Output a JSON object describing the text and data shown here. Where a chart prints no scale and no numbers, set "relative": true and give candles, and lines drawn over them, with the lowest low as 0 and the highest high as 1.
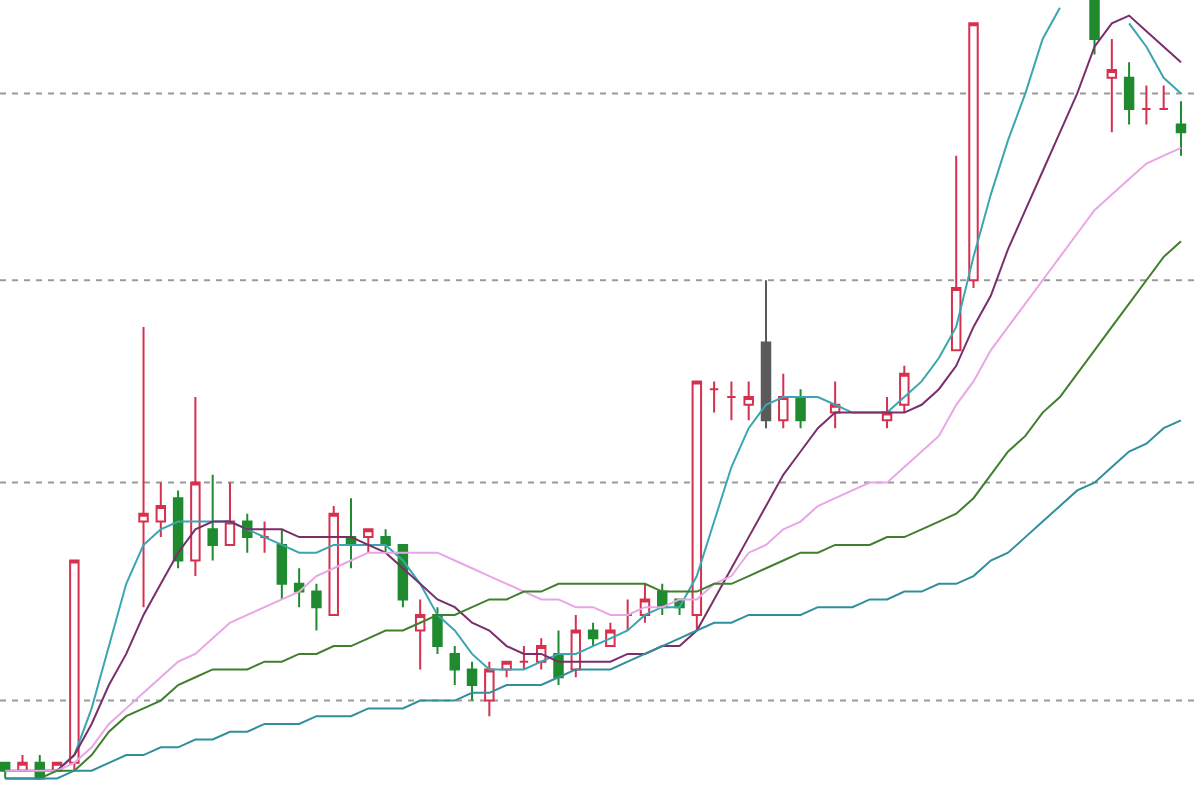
{
  "chart_data": {
    "type": "candlestick",
    "relative": true,
    "categories": [
      null,
      null,
      null,
      null,
      null,
      null,
      null,
      null,
      null,
      null,
      null,
      null,
      null,
      null,
      null,
      null,
      null,
      null,
      null,
      null,
      null,
      null,
      null,
      null,
      null,
      null,
      null,
      null,
      null,
      null,
      null,
      null,
      null,
      null,
      null,
      null,
      null,
      null,
      null,
      null,
      null,
      null,
      null,
      null,
      null,
      null,
      null,
      null,
      null,
      null,
      null,
      null,
      null,
      null,
      null,
      null,
      null,
      null,
      null,
      null,
      null,
      null,
      null,
      null,
      null,
      null,
      null,
      null,
      null
    ],
    "ohlc": [
      [
        0.02,
        0.02,
        0,
        0.01
      ],
      [
        0.01,
        0.03,
        0.01,
        0.02
      ],
      [
        0.02,
        0.03,
        0,
        0
      ],
      [
        0.01,
        0.02,
        0.01,
        0.02
      ],
      [
        0.02,
        0.28,
        0.01,
        0.28
      ],
      null,
      null,
      null,
      [
        0.33,
        0.58,
        0.22,
        0.34
      ],
      [
        0.33,
        0.38,
        0.31,
        0.35
      ],
      [
        0.36,
        0.37,
        0.27,
        0.28
      ],
      [
        0.28,
        0.49,
        0.26,
        0.38
      ],
      [
        0.32,
        0.39,
        0.28,
        0.3
      ],
      [
        0.3,
        0.38,
        0.3,
        0.33
      ],
      [
        0.33,
        0.34,
        0.29,
        0.31
      ],
      [
        0.31,
        0.33,
        0.29,
        0.31
      ],
      [
        0.3,
        0.32,
        0.23,
        0.25
      ],
      [
        0.25,
        0.27,
        0.22,
        0.24
      ],
      [
        0.24,
        0.25,
        0.19,
        0.22
      ],
      [
        0.21,
        0.35,
        0.21,
        0.34
      ],
      [
        0.31,
        0.36,
        0.27,
        0.3
      ],
      [
        0.31,
        0.32,
        0.29,
        0.32
      ],
      [
        0.31,
        0.32,
        0.29,
        0.3
      ],
      [
        0.3,
        0.3,
        0.22,
        0.23
      ],
      [
        0.19,
        0.23,
        0.14,
        0.21
      ],
      [
        0.21,
        0.22,
        0.16,
        0.17
      ],
      [
        0.16,
        0.17,
        0.12,
        0.14
      ],
      [
        0.14,
        0.15,
        0.1,
        0.12
      ],
      [
        0.1,
        0.15,
        0.08,
        0.14
      ],
      [
        0.14,
        0.15,
        0.13,
        0.15
      ],
      [
        0.15,
        0.17,
        0.14,
        0.15
      ],
      [
        0.15,
        0.18,
        0.14,
        0.17
      ],
      [
        0.16,
        0.19,
        0.12,
        0.13
      ],
      [
        0.14,
        0.21,
        0.13,
        0.19
      ],
      [
        0.19,
        0.2,
        0.17,
        0.18
      ],
      [
        0.17,
        0.2,
        0.17,
        0.19
      ],
      [
        0.21,
        0.23,
        0.19,
        0.21
      ],
      [
        0.21,
        0.25,
        0.2,
        0.23
      ],
      [
        0.24,
        0.25,
        0.21,
        0.22
      ],
      [
        0.23,
        0.23,
        0.21,
        0.22
      ],
      [
        0.21,
        0.51,
        0.19,
        0.51
      ],
      [
        0.5,
        0.51,
        0.47,
        0.5
      ],
      [
        0.49,
        0.51,
        0.46,
        0.49
      ],
      [
        0.48,
        0.51,
        0.46,
        0.49
      ],
      [
        0.56,
        0.64,
        0.45,
        0.46
      ],
      [
        0.46,
        0.52,
        0.45,
        0.49
      ],
      [
        0.49,
        0.5,
        0.45,
        0.46
      ],
      null,
      [
        0.47,
        0.51,
        0.45,
        0.48
      ],
      null,
      null,
      [
        0.46,
        0.49,
        0.45,
        0.47
      ],
      [
        0.48,
        0.53,
        0.47,
        0.52
      ],
      null,
      null,
      [
        0.55,
        0.8,
        0.55,
        0.63
      ],
      [
        0.64,
        0.97,
        0.63,
        0.97
      ],
      null,
      null,
      null,
      null,
      null,
      null,
      [
        1.0,
        1.0,
        0.93,
        0.95
      ],
      [
        0.9,
        0.95,
        0.83,
        0.91
      ],
      [
        0.9,
        0.92,
        0.84,
        0.86
      ],
      [
        0.86,
        0.89,
        0.84,
        0.86
      ],
      [
        0.86,
        0.89,
        0.86,
        0.86
      ],
      [
        0.84,
        0.87,
        0.8,
        0.83
      ]
    ],
    "colors": [
      "#1f8a2e",
      "#d6304e",
      "#1f8a2e",
      "#d6304e",
      "#d6304e",
      null,
      null,
      null,
      "#d6304e",
      "#d6304e",
      "#1f8a2e",
      "#d6304e",
      "#1f8a2e",
      "#d6304e",
      "#1f8a2e",
      "#d6304e",
      "#1f8a2e",
      "#1f8a2e",
      "#1f8a2e",
      "#d6304e",
      "#1f8a2e",
      "#d6304e",
      "#1f8a2e",
      "#1f8a2e",
      "#d6304e",
      "#1f8a2e",
      "#1f8a2e",
      "#1f8a2e",
      "#d6304e",
      "#d6304e",
      "#d6304e",
      "#d6304e",
      "#1f8a2e",
      "#d6304e",
      "#1f8a2e",
      "#d6304e",
      "#d6304e",
      "#d6304e",
      "#1f8a2e",
      "#1f8a2e",
      "#d6304e",
      "#d6304e",
      "#d6304e",
      "#d6304e",
      "#5a5a5a",
      "#d6304e",
      "#1f8a2e",
      null,
      "#d6304e",
      null,
      null,
      "#d6304e",
      "#d6304e",
      null,
      null,
      "#d6304e",
      "#d6304e",
      null,
      null,
      null,
      null,
      null,
      null,
      "#1f8a2e",
      "#d6304e",
      "#1f8a2e",
      "#d6304e",
      "#d6304e",
      "#1f8a2e"
    ],
    "series": [
      {
        "type": "line",
        "color": "#3aa6b0",
        "values": [
          null,
          null,
          0.01,
          0.01,
          0.03,
          0.09,
          0.17,
          0.25,
          0.3,
          0.32,
          0.33,
          0.33,
          0.33,
          0.33,
          0.32,
          0.31,
          0.3,
          0.29,
          0.29,
          0.3,
          0.3,
          0.3,
          0.3,
          0.28,
          0.25,
          0.21,
          0.19,
          0.16,
          0.14,
          0.14,
          0.14,
          0.15,
          0.16,
          0.16,
          0.17,
          0.18,
          0.19,
          0.21,
          0.22,
          0.22,
          0.26,
          0.33,
          0.4,
          0.45,
          0.48,
          0.49,
          0.49,
          0.49,
          0.48,
          0.47,
          0.47,
          0.47,
          0.49,
          0.51,
          0.54,
          0.58,
          0.67,
          0.75,
          0.82,
          0.88,
          0.95,
          0.99,
          null,
          null,
          null,
          0.97,
          0.94,
          0.9,
          0.88
        ]
      },
      {
        "type": "line",
        "color": "#7a2e6a",
        "values": [
          0.01,
          0.01,
          0.01,
          0.01,
          0.03,
          0.07,
          0.12,
          0.16,
          0.21,
          0.25,
          0.29,
          0.32,
          0.33,
          0.33,
          0.32,
          0.32,
          0.32,
          0.31,
          0.31,
          0.31,
          0.31,
          0.3,
          0.29,
          0.27,
          0.25,
          0.23,
          0.22,
          0.2,
          0.19,
          0.17,
          0.16,
          0.16,
          0.15,
          0.15,
          0.15,
          0.15,
          0.16,
          0.16,
          0.17,
          0.17,
          0.19,
          0.23,
          0.27,
          0.31,
          0.35,
          0.39,
          0.42,
          0.45,
          0.47,
          0.47,
          0.47,
          0.47,
          0.47,
          0.48,
          0.5,
          0.53,
          0.58,
          0.62,
          0.68,
          0.73,
          0.78,
          0.83,
          0.88,
          0.94,
          0.97,
          0.98,
          0.96,
          0.94,
          0.92
        ]
      },
      {
        "type": "line",
        "color": "#e9a6e6",
        "values": [
          0.01,
          0.01,
          0.01,
          0.01,
          0.02,
          0.04,
          0.07,
          0.09,
          0.11,
          0.13,
          0.15,
          0.16,
          0.18,
          0.2,
          0.21,
          0.22,
          0.23,
          0.24,
          0.26,
          0.27,
          0.28,
          0.29,
          0.29,
          0.29,
          0.29,
          0.29,
          0.28,
          0.27,
          0.26,
          0.25,
          0.24,
          0.23,
          0.23,
          0.22,
          0.22,
          0.21,
          0.21,
          0.22,
          0.22,
          0.23,
          0.23,
          0.25,
          0.26,
          0.29,
          0.3,
          0.32,
          0.33,
          0.35,
          0.36,
          0.37,
          0.38,
          0.38,
          0.4,
          0.42,
          0.44,
          0.48,
          0.51,
          0.55,
          0.58,
          0.61,
          0.64,
          0.67,
          0.7,
          0.73,
          0.75,
          0.77,
          0.79,
          0.8,
          0.81
        ]
      },
      {
        "type": "line",
        "color": "#3f7f2e",
        "values": [
          0,
          0,
          0,
          0.01,
          0.01,
          0.03,
          0.06,
          0.08,
          0.09,
          0.1,
          0.12,
          0.13,
          0.14,
          0.14,
          0.14,
          0.15,
          0.15,
          0.16,
          0.16,
          0.17,
          0.17,
          0.18,
          0.19,
          0.19,
          0.2,
          0.21,
          0.21,
          0.22,
          0.23,
          0.23,
          0.24,
          0.24,
          0.25,
          0.25,
          0.25,
          0.25,
          0.25,
          0.25,
          0.24,
          0.24,
          0.24,
          0.25,
          0.25,
          0.26,
          0.27,
          0.28,
          0.29,
          0.29,
          0.3,
          0.3,
          0.3,
          0.31,
          0.31,
          0.32,
          0.33,
          0.34,
          0.36,
          0.39,
          0.42,
          0.44,
          0.47,
          0.49,
          0.52,
          0.55,
          0.58,
          0.61,
          0.64,
          0.67,
          0.69
        ]
      },
      {
        "type": "line",
        "color": "#2f8f9c",
        "values": [
          0,
          0,
          0,
          0,
          0.01,
          0.01,
          0.02,
          0.03,
          0.03,
          0.04,
          0.04,
          0.05,
          0.05,
          0.06,
          0.06,
          0.07,
          0.07,
          0.07,
          0.08,
          0.08,
          0.08,
          0.09,
          0.09,
          0.09,
          0.1,
          0.1,
          0.1,
          0.11,
          0.11,
          0.12,
          0.12,
          0.12,
          0.13,
          0.14,
          0.14,
          0.14,
          0.15,
          0.16,
          0.17,
          0.18,
          0.19,
          0.2,
          0.2,
          0.21,
          0.21,
          0.21,
          0.21,
          0.22,
          0.22,
          0.22,
          0.23,
          0.23,
          0.24,
          0.24,
          0.25,
          0.25,
          0.26,
          0.28,
          0.29,
          0.31,
          0.33,
          0.35,
          0.37,
          0.38,
          0.4,
          0.42,
          0.43,
          0.45,
          0.46
        ]
      }
    ],
    "ref_lines": [
      {
        "axis": "y",
        "value": 0.88,
        "color": "#9a9a9a",
        "line_style": "dotted"
      },
      {
        "axis": "y",
        "value": 0.64,
        "color": "#9a9a9a",
        "line_style": "dotted"
      },
      {
        "axis": "y",
        "value": 0.38,
        "color": "#9a9a9a",
        "line_style": "dotted"
      },
      {
        "axis": "y",
        "value": 0.1,
        "color": "#9a9a9a",
        "line_style": "dotted"
      }
    ]
  }
}
